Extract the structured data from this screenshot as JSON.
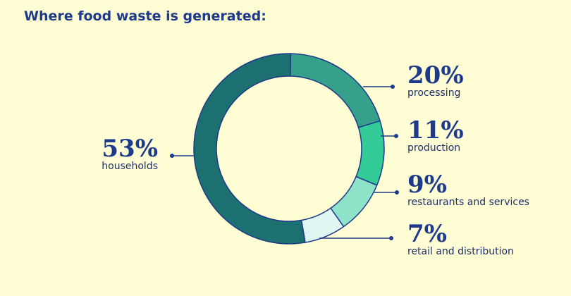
{
  "title": "Where food waste is generated:",
  "colors": {
    "background": "#fefdd3",
    "text": "#1e3a8a",
    "outline": "#1e3a8a"
  },
  "chart_data": {
    "type": "pie",
    "style": "donut",
    "title": "Where food waste is generated:",
    "slices": [
      {
        "label": "processing",
        "value": 20,
        "display": "20%",
        "color": "#37a08a"
      },
      {
        "label": "production",
        "value": 11,
        "display": "11%",
        "color": "#33cc99"
      },
      {
        "label": "restaurants and services",
        "value": 9,
        "display": "9%",
        "color": "#8fe3c8"
      },
      {
        "label": "retail and distribution",
        "value": 7,
        "display": "7%",
        "color": "#dff6f3"
      },
      {
        "label": "households",
        "value": 53,
        "display": "53%",
        "color": "#1c7070"
      }
    ],
    "legend": "none"
  }
}
